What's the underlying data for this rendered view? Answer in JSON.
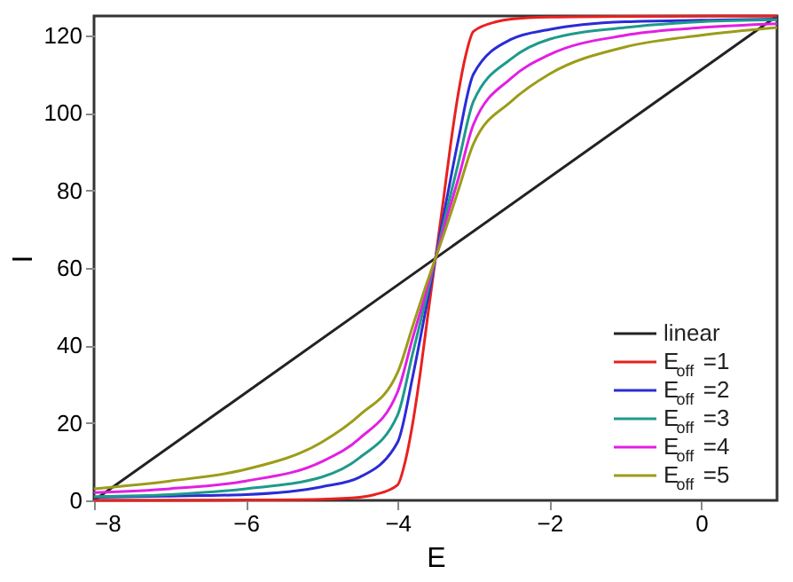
{
  "chart_data": {
    "type": "line",
    "xlabel": "E",
    "ylabel": "I",
    "xlim": [
      -8,
      1
    ],
    "ylim": [
      0,
      125
    ],
    "xticks": [
      -8,
      -6,
      -4,
      -2,
      0
    ],
    "yticks": [
      0,
      20,
      40,
      60,
      80,
      100,
      120
    ],
    "grid": false,
    "legend": "bottom right",
    "x": [
      -8,
      -7,
      -6,
      -5,
      -4.5,
      -4,
      -3.8,
      -3.65,
      -3.5,
      -3.35,
      -3.2,
      -3,
      -2.5,
      -2,
      -1,
      0,
      1
    ],
    "series": [
      {
        "name": "linear",
        "color": "#222222",
        "x": [
          -8,
          1
        ],
        "values": [
          0,
          125
        ]
      },
      {
        "name": "E$_{off}$=1",
        "color": "#e8211f",
        "x": [
          -8,
          -6,
          -5,
          -4.5,
          -4.3,
          -4,
          -3.9,
          -3.8,
          -3.7,
          -3.6,
          -3.5,
          -3.4,
          -3.3,
          -3.2,
          -3.1,
          -3,
          -2.7,
          -2.5,
          -2,
          -1,
          1
        ],
        "values": [
          0,
          0.1,
          0.3,
          0.8,
          1.5,
          4,
          10,
          20,
          33,
          48,
          62.5,
          77,
          92,
          105,
          115,
          121,
          123.5,
          124.2,
          124.7,
          124.9,
          125
        ]
      },
      {
        "name": "E$_{off}$=2",
        "color": "#2b2bd6",
        "values": [
          0.8,
          1.1,
          1.5,
          3.5,
          6,
          15,
          32,
          47,
          62.5,
          78,
          93,
          110,
          119,
          121.5,
          123.5,
          123.9,
          124.2
        ]
      },
      {
        "name": "E$_{off}$=3",
        "color": "#1e9a8a",
        "values": [
          1,
          1.5,
          3,
          6,
          11,
          22,
          38,
          50,
          62.5,
          75,
          87,
          103,
          114,
          119,
          122,
          123.5,
          124
        ]
      },
      {
        "name": "E$_{off}$=4",
        "color": "#e21fe2",
        "values": [
          2,
          3,
          5,
          10,
          16,
          28,
          42,
          52,
          62.5,
          73,
          83,
          97,
          109,
          115,
          120,
          122,
          123
        ]
      },
      {
        "name": "E$_{off}$=5",
        "color": "#9c9c1a",
        "values": [
          3,
          5,
          8,
          15,
          22,
          33,
          45,
          54,
          62.5,
          71,
          80,
          92,
          103,
          110,
          117,
          120,
          122
        ]
      }
    ]
  }
}
